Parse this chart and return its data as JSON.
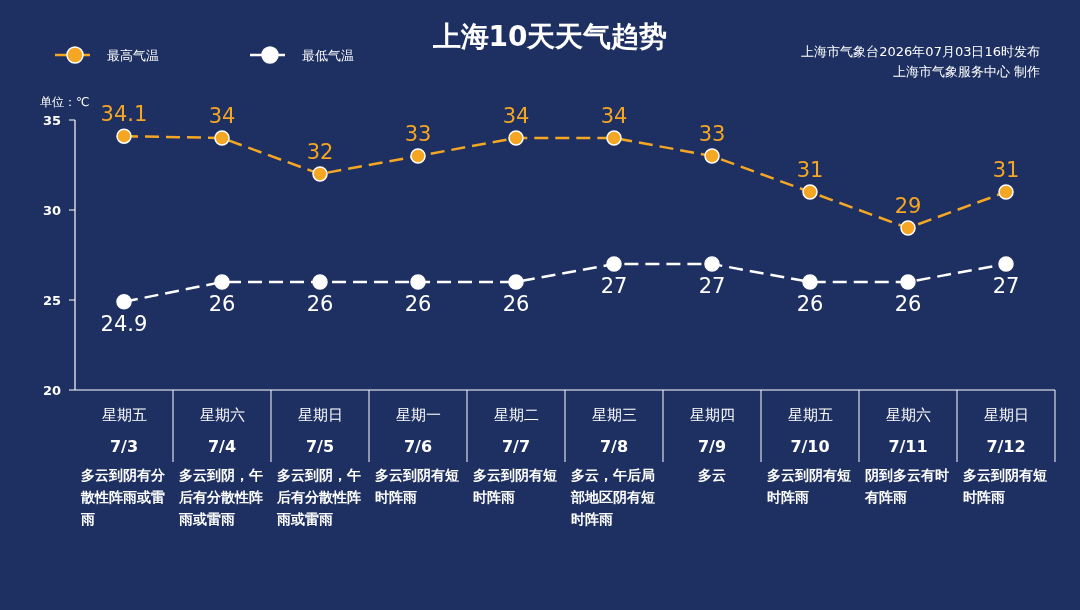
{
  "chart_data": {
    "type": "line",
    "title": "上海10天天气趋势",
    "ylabel": "单位：℃",
    "annotations": [
      "上海市气象台2026年07月03日16时发布",
      "上海市气象服务中心  制作"
    ],
    "categories": [
      "星期五\n7/3\n多云到阴有分散性阵雨或雷雨",
      "星期六\n7/4\n多云到阴，午后有分散性阵雨或雷雨",
      "星期日\n7/5\n多云到阴，午后有分散性阵雨或雷雨",
      "星期一\n7/6\n多云到阴有短时阵雨",
      "星期二\n7/7\n多云到阴有短时阵雨",
      "星期三\n7/8\n多云，午后局部地区阴有短时阵雨",
      "星期四\n7/9\n多云",
      "星期五\n7/10\n多云到阴有短时阵雨",
      "星期六\n7/11\n阴到多云有时有阵雨",
      "星期日\n7/12\n多云到阴有短时阵雨"
    ],
    "series": [
      {
        "name": "最高气温",
        "color": "#f5a623",
        "values": [
          34.1,
          34,
          32,
          33,
          34,
          34,
          33,
          31,
          29,
          31
        ]
      },
      {
        "name": "最低气温",
        "color": "#ffffff",
        "values": [
          24.9,
          26,
          26,
          26,
          26,
          27,
          27,
          26,
          26,
          27
        ]
      }
    ],
    "ylim": [
      20,
      35
    ],
    "yticks": [
      20,
      25,
      30,
      35
    ],
    "data_labels": true,
    "legend": "top left",
    "marker": "circle",
    "line_style": "dashed",
    "grid": false
  }
}
